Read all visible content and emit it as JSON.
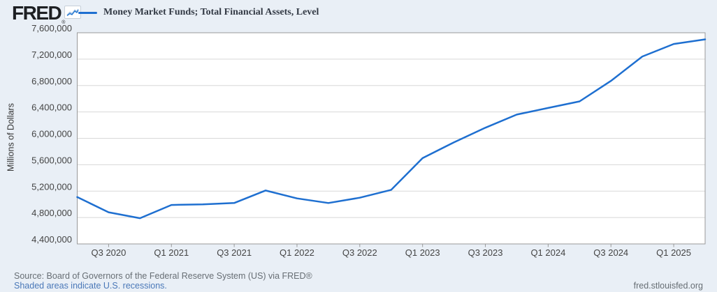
{
  "header": {
    "logo_text": "FRED",
    "registered_mark": "®",
    "logo_icon": "sparkline-chart-icon",
    "legend": {
      "series_label": "Money Market Funds; Total Financial Assets, Level"
    }
  },
  "chart_data": {
    "type": "line",
    "title": "Money Market Funds; Total Financial Assets, Level",
    "xlabel": "",
    "ylabel": "Millions of Dollars",
    "x_quarters": [
      "2020 Q2",
      "2020 Q3",
      "2020 Q4",
      "2021 Q1",
      "2021 Q2",
      "2021 Q3",
      "2021 Q4",
      "2022 Q1",
      "2022 Q2",
      "2022 Q3",
      "2022 Q4",
      "2023 Q1",
      "2023 Q2",
      "2023 Q3",
      "2023 Q4",
      "2024 Q1",
      "2024 Q2",
      "2024 Q3",
      "2024 Q4",
      "2025 Q1",
      "2025 Q2"
    ],
    "values": [
      5110000,
      4880000,
      4790000,
      4990000,
      5000000,
      5020000,
      5210000,
      5090000,
      5020000,
      5100000,
      5220000,
      5700000,
      5940000,
      6160000,
      6360000,
      6460000,
      6560000,
      6870000,
      7240000,
      7430000,
      7500000
    ],
    "x_tick_labels": [
      "Q3 2020",
      "Q1 2021",
      "Q3 2021",
      "Q1 2022",
      "Q3 2022",
      "Q1 2023",
      "Q3 2023",
      "Q1 2024",
      "Q3 2024",
      "Q1 2025"
    ],
    "x_tick_indices": [
      1,
      3,
      5,
      7,
      9,
      11,
      13,
      15,
      17,
      19
    ],
    "y_ticks": [
      4400000,
      4800000,
      5200000,
      5600000,
      6000000,
      6400000,
      6800000,
      7200000,
      7600000
    ],
    "ylim": [
      4400000,
      7600000
    ],
    "grid": "horizontal",
    "legend_position": "top-left",
    "units": "Millions of Dollars",
    "frequency": "Quarterly"
  },
  "colors": {
    "line": "#1e6fd0",
    "plot_background": "#ffffff",
    "page_background": "#e9eff6",
    "gridline": "#d8d8d8",
    "axis_border": "#999999",
    "tick_label": "#444444",
    "link_blue": "#4a78b8",
    "source_gray": "#676e74",
    "title_text": "#333a45"
  },
  "footer": {
    "source_line": "Source: Board of Governors of the Federal Reserve System (US) via FRED®",
    "recession_note": "Shaded areas indicate U.S. recessions.",
    "site_url": "fred.stlouisfed.org"
  }
}
